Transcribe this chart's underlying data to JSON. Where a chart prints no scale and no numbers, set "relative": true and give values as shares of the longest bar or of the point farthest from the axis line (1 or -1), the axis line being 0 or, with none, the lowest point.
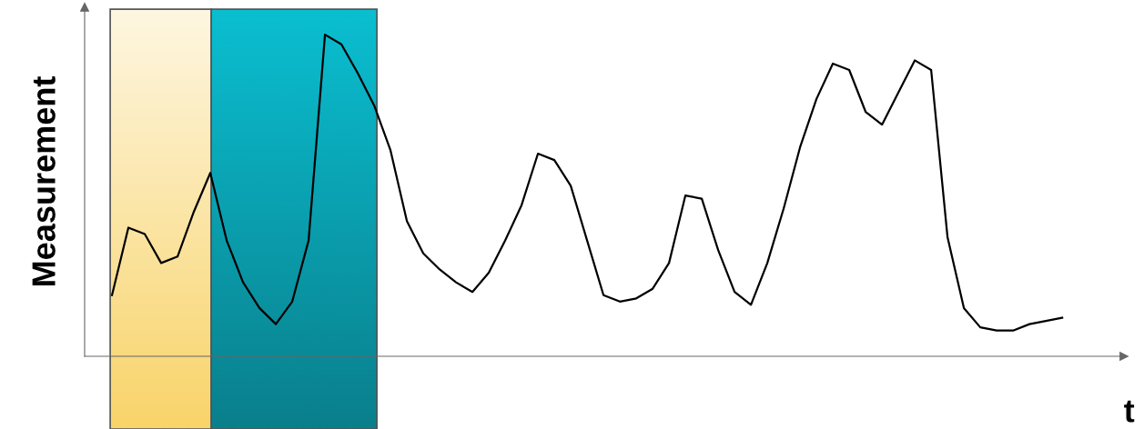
{
  "chart_data": {
    "type": "line",
    "relative": true,
    "xlabel": "t",
    "ylabel": "Measurement",
    "categories": [
      null,
      null,
      null,
      null,
      null,
      null,
      null,
      null,
      null,
      null,
      null,
      null,
      null,
      null,
      null,
      null,
      null,
      null,
      null,
      null,
      null,
      null,
      null,
      null,
      null,
      null,
      null,
      null,
      null,
      null,
      null,
      null,
      null,
      null,
      null,
      null,
      null,
      null,
      null,
      null,
      null,
      null,
      null,
      null,
      null,
      null,
      null,
      null,
      null,
      null,
      null,
      null,
      null,
      null,
      null,
      null,
      null,
      null,
      null
    ],
    "series": [
      {
        "color": "#000000",
        "values": [
          0.19,
          0.4,
          0.38,
          0.29,
          0.31,
          0.45,
          0.57,
          0.36,
          0.23,
          0.15,
          0.1,
          0.17,
          0.36,
          1,
          0.97,
          0.88,
          0.78,
          0.64,
          0.42,
          0.32,
          0.27,
          0.23,
          0.2,
          0.26,
          0.36,
          0.47,
          0.63,
          0.61,
          0.53,
          0.36,
          0.19,
          0.17,
          0.18,
          0.21,
          0.29,
          0.5,
          0.49,
          0.33,
          0.2,
          0.16,
          0.29,
          0.46,
          0.65,
          0.8,
          0.91,
          0.89,
          0.76,
          0.72,
          0.82,
          0.92,
          0.89,
          0.37,
          0.15,
          0.09,
          0.08,
          0.08,
          0.1,
          0.11,
          0.12
        ]
      }
    ]
  }
}
